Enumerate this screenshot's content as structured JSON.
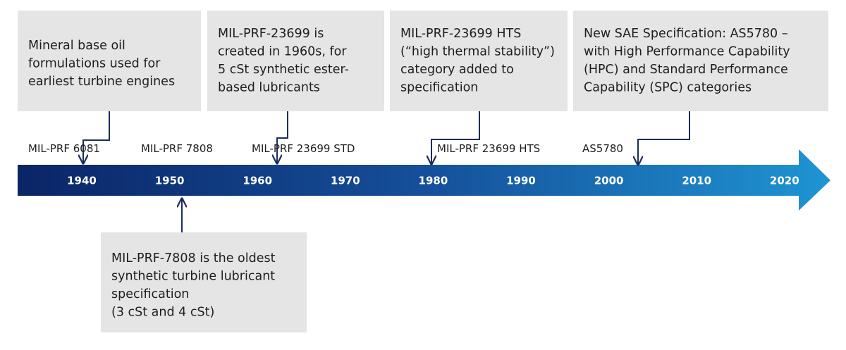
{
  "timeline": {
    "years": [
      "1940",
      "1950",
      "1960",
      "1970",
      "1980",
      "1990",
      "2000",
      "2010",
      "2020"
    ],
    "specs": [
      "MIL-PRF 6081",
      "MIL-PRF 7808",
      "MIL-PRF 23699 STD",
      "MIL-PRF 23699 HTS",
      "AS5780"
    ],
    "notes": [
      {
        "lines": [
          "Mineral base oil",
          "formulations used for",
          "earliest turbine engines"
        ]
      },
      {
        "lines": [
          "MIL-PRF-23699 is",
          "created in 1960s, for",
          "5 cSt synthetic ester-",
          "based lubricants"
        ]
      },
      {
        "lines": [
          "MIL-PRF-23699 HTS",
          "(“high thermal stability”)",
          "category added to",
          "specification"
        ]
      },
      {
        "lines": [
          "New SAE Specification: AS5780 –",
          "with High Performance Capability",
          "(HPC) and Standard Performance",
          "Capability (SPC) categories"
        ]
      },
      {
        "lines": [
          "MIL-PRF-7808 is the oldest",
          "synthetic turbine lubricant",
          "specification",
          "(3 cSt and 4 cSt)"
        ]
      }
    ]
  }
}
